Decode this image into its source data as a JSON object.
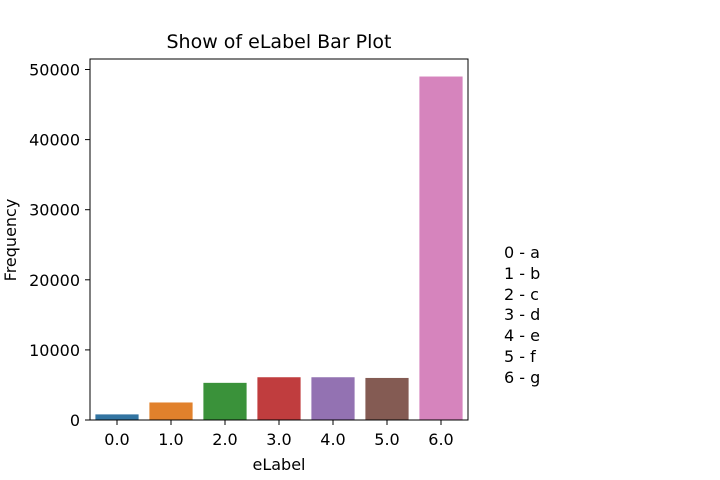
{
  "chart_data": {
    "type": "bar",
    "title": "Show of eLabel Bar Plot",
    "xlabel": "eLabel",
    "ylabel": "Frequency",
    "categories": [
      "0.0",
      "1.0",
      "2.0",
      "3.0",
      "4.0",
      "5.0",
      "6.0"
    ],
    "values": [
      800,
      2500,
      5300,
      6100,
      6100,
      6000,
      49000
    ],
    "colors": [
      "#3274a1",
      "#e1812c",
      "#3a923a",
      "#c03d3e",
      "#9372b2",
      "#845b53",
      "#d684bd"
    ],
    "ylim": [
      0,
      51500
    ],
    "yticks": [
      0,
      10000,
      20000,
      30000,
      40000,
      50000
    ],
    "ytick_labels": [
      "0",
      "10000",
      "20000",
      "30000",
      "40000",
      "50000"
    ],
    "grid": false
  },
  "annotation": {
    "lines": [
      "0 - a",
      "1 - b",
      "2 - c",
      "3 - d",
      "4 - e",
      "5 - f",
      "6 - g"
    ]
  }
}
